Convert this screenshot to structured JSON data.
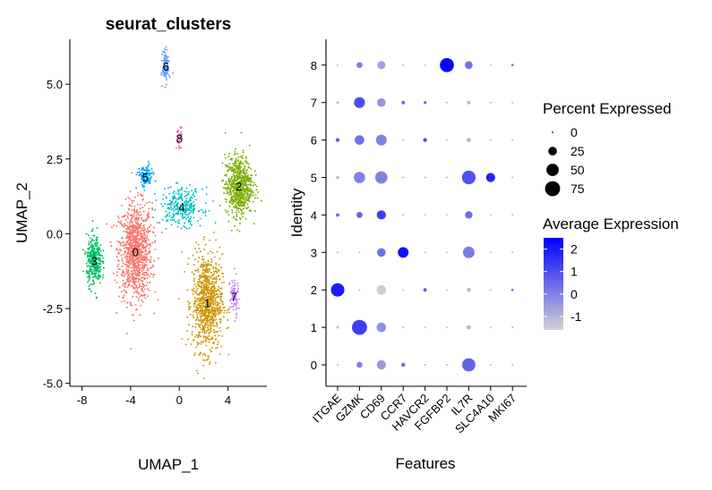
{
  "chart_data": [
    {
      "type": "scatter",
      "title": "seurat_clusters",
      "xlabel": "UMAP_1",
      "ylabel": "UMAP_2",
      "xlim": [
        -9.0,
        7.2
      ],
      "ylim": [
        -5.1,
        6.5
      ],
      "xticks": [
        -8,
        -4,
        0,
        4
      ],
      "xtick_labels": [
        "-8",
        "-4",
        "0",
        "4"
      ],
      "yticks": [
        -5.0,
        -2.5,
        0.0,
        2.5,
        5.0
      ],
      "ytick_labels": [
        "-5.0",
        "-2.5",
        "0.0",
        "2.5",
        "5.0"
      ],
      "grid": false,
      "legend": "none",
      "clusters": [
        {
          "label": "0",
          "color": "#F8766D",
          "center": [
            -3.6,
            -0.6
          ],
          "spread": [
            1.1,
            1.3
          ],
          "count": 1000
        },
        {
          "label": "1",
          "color": "#CD9600",
          "center": [
            2.3,
            -2.3
          ],
          "spread": [
            1.0,
            1.3
          ],
          "count": 850
        },
        {
          "label": "2",
          "color": "#7CAE00",
          "center": [
            4.9,
            1.6
          ],
          "spread": [
            0.9,
            0.8
          ],
          "count": 680
        },
        {
          "label": "3",
          "color": "#00BE67",
          "center": [
            -7.0,
            -0.9
          ],
          "spread": [
            0.5,
            0.65
          ],
          "count": 340
        },
        {
          "label": "4",
          "color": "#00BFC4",
          "center": [
            0.2,
            0.9
          ],
          "spread": [
            1.4,
            0.5
          ],
          "count": 280
        },
        {
          "label": "5",
          "color": "#00A9FF",
          "center": [
            -2.8,
            1.9
          ],
          "spread": [
            0.5,
            0.3
          ],
          "count": 130
        },
        {
          "label": "6",
          "color": "#619CFF",
          "center": [
            -1.1,
            5.6
          ],
          "spread": [
            0.22,
            0.4
          ],
          "count": 120
        },
        {
          "label": "7",
          "color": "#C77CFF",
          "center": [
            4.5,
            -2.1
          ],
          "spread": [
            0.28,
            0.55
          ],
          "count": 80
        },
        {
          "label": "8",
          "color": "#FF61CC",
          "center": [
            0.0,
            3.2
          ],
          "spread": [
            0.2,
            0.3
          ],
          "count": 40
        }
      ]
    },
    {
      "type": "dotplot",
      "xlabel": "Features",
      "ylabel": "Identity",
      "features": [
        "ITGAE",
        "GZMK",
        "CD69",
        "CCR7",
        "HAVCR2",
        "FGFBP2",
        "IL7R",
        "SLC4A10",
        "MKI67"
      ],
      "identities": [
        "0",
        "1",
        "2",
        "3",
        "4",
        "5",
        "6",
        "7",
        "8"
      ],
      "percent_expressed": [
        [
          1,
          12,
          28,
          6,
          1,
          1,
          58,
          1,
          1
        ],
        [
          2,
          75,
          30,
          1,
          1,
          1,
          6,
          1,
          1
        ],
        [
          60,
          1,
          30,
          1,
          4,
          1,
          5,
          1,
          2
        ],
        [
          1,
          1,
          25,
          38,
          1,
          1,
          45,
          1,
          1
        ],
        [
          4,
          12,
          28,
          1,
          1,
          1,
          18,
          1,
          1
        ],
        [
          3,
          42,
          50,
          1,
          1,
          1,
          62,
          28,
          1
        ],
        [
          5,
          30,
          38,
          1,
          5,
          1,
          6,
          1,
          1
        ],
        [
          2,
          40,
          25,
          4,
          3,
          1,
          4,
          1,
          1
        ],
        [
          1,
          12,
          22,
          1,
          1,
          65,
          20,
          1,
          2
        ]
      ],
      "average_expression": [
        [
          -1,
          0.0,
          -0.5,
          0.3,
          -1,
          -1,
          0.6,
          -1,
          -1
        ],
        [
          -1,
          1.3,
          -0.3,
          -1,
          -1,
          -1,
          -1,
          -1,
          -1
        ],
        [
          2.0,
          -1,
          -1.5,
          -1,
          0.7,
          -1,
          -1,
          -1,
          0.5
        ],
        [
          -1,
          -1,
          0.3,
          2.2,
          -1,
          -1,
          0.1,
          -1,
          -1
        ],
        [
          0.5,
          0.6,
          1.3,
          -1,
          -1,
          -1,
          0.4,
          -1,
          -1
        ],
        [
          -1,
          0.0,
          0.0,
          -1,
          -1,
          -1,
          0.9,
          1.8,
          -1
        ],
        [
          0.7,
          0.3,
          0.0,
          -1,
          1.0,
          -1,
          -1,
          -1,
          -1
        ],
        [
          -1,
          1.0,
          -0.4,
          0.5,
          0.3,
          -1,
          -1,
          -1,
          -1
        ],
        [
          -1,
          0.0,
          -0.6,
          -1,
          -1,
          2.4,
          0.3,
          -1,
          0.3
        ]
      ],
      "size_legend": {
        "title": "Percent Expressed",
        "levels": [
          0,
          25,
          50,
          75
        ],
        "labels": [
          "0",
          "25",
          "50",
          "75"
        ]
      },
      "color_legend": {
        "title": "Average Expression",
        "low": -1.6,
        "high": 2.5,
        "ticks": [
          2,
          1,
          0,
          -1
        ],
        "tick_labels": [
          "2",
          "1",
          "0",
          "-1"
        ],
        "low_color": "#d3d3d3",
        "high_color": "#0000ff"
      }
    }
  ]
}
